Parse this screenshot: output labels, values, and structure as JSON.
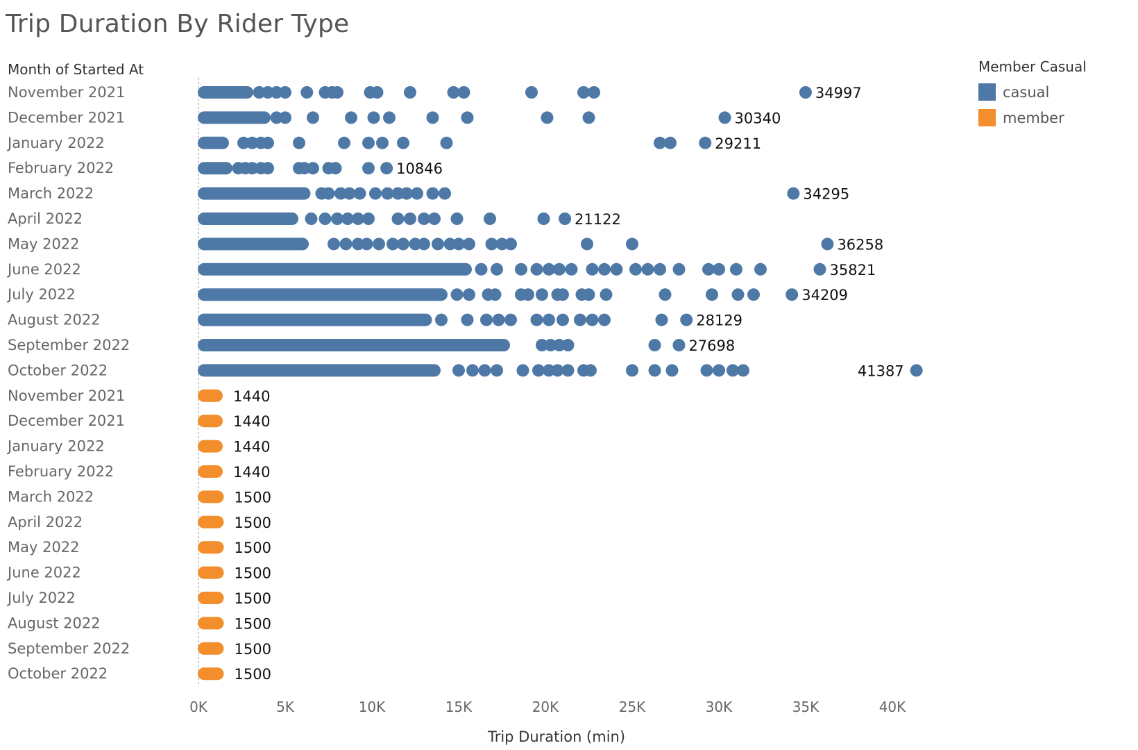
{
  "title": "Trip Duration By Rider Type",
  "legend": {
    "title": "Member Casual",
    "items": [
      {
        "label": "casual",
        "color": "#4E79A7"
      },
      {
        "label": "member",
        "color": "#F28E2B"
      }
    ]
  },
  "chart_data": {
    "type": "scatter",
    "title": "Trip Duration By Rider Type",
    "row_header": "Month of Started At",
    "xlabel": "Trip Duration (min)",
    "xlim": [
      0,
      42000
    ],
    "x_ticks": [
      "0K",
      "5K",
      "10K",
      "15K",
      "20K",
      "25K",
      "30K",
      "35K",
      "40K"
    ],
    "x_tick_values": [
      0,
      5000,
      10000,
      15000,
      20000,
      25000,
      30000,
      35000,
      40000
    ],
    "color_field": "Member Casual",
    "rows": [
      {
        "month": "November 2021",
        "type": "casual",
        "max": 34997,
        "dense_to": 3200,
        "points": [
          3500,
          4000,
          4500,
          5000,
          6250,
          7300,
          7700,
          8000,
          9900,
          10300,
          12200,
          14700,
          15300,
          19200,
          22200,
          22800,
          34997
        ]
      },
      {
        "month": "December 2021",
        "type": "casual",
        "max": 30340,
        "dense_to": 4200,
        "points": [
          4500,
          5000,
          6600,
          8800,
          10100,
          11000,
          13500,
          15500,
          20100,
          22500,
          30340
        ]
      },
      {
        "month": "January 2022",
        "type": "casual",
        "max": 29211,
        "dense_to": 1800,
        "points": [
          2600,
          3100,
          3600,
          4000,
          5800,
          8400,
          9800,
          10600,
          11800,
          14300,
          26600,
          27200,
          29211
        ]
      },
      {
        "month": "February 2022",
        "type": "casual",
        "max": 10846,
        "dense_to": 2000,
        "points": [
          2300,
          2700,
          3100,
          3600,
          4000,
          5800,
          6100,
          6600,
          7500,
          7900,
          9800,
          10846
        ]
      },
      {
        "month": "March 2022",
        "type": "casual",
        "max": 34295,
        "dense_to": 6500,
        "points": [
          7100,
          7500,
          8200,
          8700,
          9300,
          10200,
          10900,
          11500,
          12000,
          12600,
          13500,
          14200,
          34295
        ]
      },
      {
        "month": "April 2022",
        "type": "casual",
        "max": 21122,
        "dense_to": 5800,
        "points": [
          6500,
          7300,
          8000,
          8600,
          9200,
          9800,
          11500,
          12200,
          13000,
          13600,
          14900,
          16800,
          19900,
          21122
        ]
      },
      {
        "month": "May 2022",
        "type": "casual",
        "max": 36258,
        "dense_to": 6400,
        "points": [
          7800,
          8500,
          9200,
          9700,
          10400,
          11200,
          11800,
          12500,
          13000,
          13800,
          14500,
          15000,
          15600,
          16900,
          17500,
          18000,
          22400,
          25000,
          36258
        ]
      },
      {
        "month": "June 2022",
        "type": "casual",
        "max": 35821,
        "dense_to": 15800,
        "points": [
          16300,
          17200,
          18600,
          19500,
          20200,
          20800,
          21500,
          22700,
          23400,
          24100,
          25200,
          25900,
          26600,
          27700,
          29400,
          30000,
          31000,
          32400,
          35821
        ]
      },
      {
        "month": "July 2022",
        "type": "casual",
        "max": 34209,
        "dense_to": 14400,
        "points": [
          14900,
          15600,
          16700,
          17100,
          18600,
          19000,
          19800,
          20700,
          21000,
          22100,
          22500,
          23500,
          26900,
          29600,
          31100,
          32000,
          34209
        ]
      },
      {
        "month": "August 2022",
        "type": "casual",
        "max": 28129,
        "dense_to": 13500,
        "points": [
          14000,
          15500,
          16600,
          17300,
          18000,
          19500,
          20200,
          21000,
          22000,
          22700,
          23400,
          26700,
          28129
        ]
      },
      {
        "month": "September 2022",
        "type": "casual",
        "max": 27698,
        "dense_to": 18000,
        "points": [
          19800,
          20300,
          20800,
          21300,
          26300,
          27698
        ]
      },
      {
        "month": "October 2022",
        "type": "casual",
        "max": 41387,
        "dense_to": 14000,
        "points": [
          15000,
          15800,
          16500,
          17200,
          18700,
          19600,
          20200,
          20700,
          21300,
          22200,
          22600,
          25000,
          26300,
          27300,
          29300,
          30000,
          30800,
          31400,
          41387
        ]
      },
      {
        "month": "November 2021",
        "type": "member",
        "max": 1440,
        "dense_to": 1440,
        "points": []
      },
      {
        "month": "December 2021",
        "type": "member",
        "max": 1440,
        "dense_to": 1440,
        "points": []
      },
      {
        "month": "January 2022",
        "type": "member",
        "max": 1440,
        "dense_to": 1440,
        "points": []
      },
      {
        "month": "February 2022",
        "type": "member",
        "max": 1440,
        "dense_to": 1440,
        "points": []
      },
      {
        "month": "March 2022",
        "type": "member",
        "max": 1500,
        "dense_to": 1500,
        "points": []
      },
      {
        "month": "April 2022",
        "type": "member",
        "max": 1500,
        "dense_to": 1500,
        "points": []
      },
      {
        "month": "May 2022",
        "type": "member",
        "max": 1500,
        "dense_to": 1500,
        "points": []
      },
      {
        "month": "June 2022",
        "type": "member",
        "max": 1500,
        "dense_to": 1500,
        "points": []
      },
      {
        "month": "July 2022",
        "type": "member",
        "max": 1500,
        "dense_to": 1500,
        "points": []
      },
      {
        "month": "August 2022",
        "type": "member",
        "max": 1500,
        "dense_to": 1500,
        "points": []
      },
      {
        "month": "September 2022",
        "type": "member",
        "max": 1500,
        "dense_to": 1500,
        "points": []
      },
      {
        "month": "October 2022",
        "type": "member",
        "max": 1500,
        "dense_to": 1500,
        "points": []
      }
    ]
  }
}
